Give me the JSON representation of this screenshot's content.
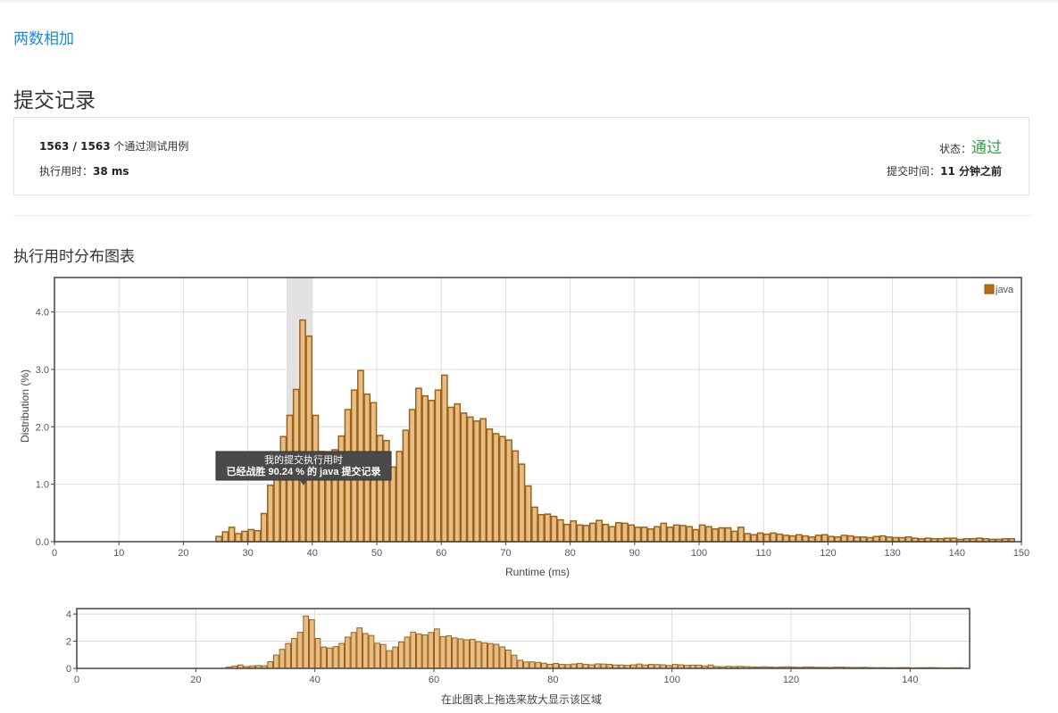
{
  "problem": {
    "title": "两数相加"
  },
  "page": {
    "title": "提交记录"
  },
  "summary": {
    "passed": "1563",
    "separator": " / ",
    "total": "1563",
    "passed_suffix": " 个通过测试用例",
    "runtime_label": "执行用时：",
    "runtime_value": "38 ms",
    "status_label": "状态：",
    "status_value": "通过",
    "submit_label": "提交时间：",
    "submit_value": "11 分钟之前"
  },
  "chart_section": {
    "title": "执行用时分布图表"
  },
  "colors": {
    "bar_fill": "#e8bc86",
    "bar_stroke": "#9b6212",
    "status_green": "#3aa14b",
    "link_blue": "#1a8cd8"
  },
  "chart_data": {
    "type": "bar",
    "xlabel": "Runtime (ms)",
    "ylabel": "Distribution (%)",
    "xlim": [
      0,
      150
    ],
    "ylim": [
      0,
      4.6
    ],
    "xticks": [
      0,
      10,
      20,
      30,
      40,
      50,
      60,
      70,
      80,
      90,
      100,
      110,
      120,
      130,
      140,
      150
    ],
    "yticks": [
      "0.0",
      "1.0",
      "2.0",
      "3.0",
      "4.0"
    ],
    "legend": {
      "label": "java",
      "position": "top-right"
    },
    "highlight_range": [
      36,
      40
    ],
    "tooltip": {
      "line1": "我的提交执行用时",
      "line2": "已经战胜 90.24 % 的 java 提交记录"
    },
    "series": [
      {
        "name": "java",
        "x": [
          26,
          27,
          28,
          29,
          30,
          31,
          32,
          33,
          34,
          35,
          36,
          37,
          38,
          39,
          40,
          41,
          42,
          43,
          44,
          45,
          46,
          47,
          48,
          49,
          50,
          51,
          52,
          53,
          54,
          55,
          56,
          57,
          58,
          59,
          60,
          61,
          62,
          63,
          64,
          65,
          66,
          67,
          68,
          69,
          70,
          71,
          72,
          73,
          74,
          75,
          76,
          77,
          78,
          79,
          80,
          81,
          82,
          83,
          84,
          85,
          86,
          87,
          88,
          89,
          90,
          91,
          92,
          93,
          94,
          95,
          96,
          97,
          98,
          99,
          100,
          101,
          102,
          103,
          104,
          105,
          106,
          107,
          108,
          109,
          110,
          111,
          112,
          113,
          114,
          115,
          116,
          117,
          118,
          119,
          120,
          121,
          122,
          123,
          124,
          125,
          126,
          127,
          128,
          129,
          130,
          131,
          132,
          133,
          134,
          135,
          136,
          137,
          138,
          139,
          140,
          141,
          142,
          143,
          144,
          145,
          146,
          147,
          148,
          149
        ],
        "values": [
          0.09,
          0.17,
          0.25,
          0.14,
          0.18,
          0.21,
          0.19,
          0.49,
          0.98,
          1.4,
          1.83,
          2.2,
          2.65,
          3.86,
          3.58,
          2.2,
          1.57,
          1.5,
          1.6,
          1.84,
          2.3,
          2.64,
          2.98,
          2.57,
          2.42,
          1.85,
          1.76,
          1.3,
          1.57,
          1.94,
          2.3,
          2.67,
          2.54,
          2.46,
          2.64,
          2.9,
          2.34,
          2.4,
          2.24,
          2.17,
          2.1,
          2.14,
          1.96,
          1.88,
          1.83,
          1.77,
          1.58,
          1.35,
          0.97,
          0.6,
          0.47,
          0.48,
          0.44,
          0.38,
          0.3,
          0.36,
          0.29,
          0.28,
          0.32,
          0.37,
          0.3,
          0.26,
          0.33,
          0.32,
          0.29,
          0.25,
          0.25,
          0.22,
          0.26,
          0.32,
          0.25,
          0.29,
          0.28,
          0.26,
          0.21,
          0.29,
          0.26,
          0.22,
          0.24,
          0.24,
          0.18,
          0.25,
          0.14,
          0.12,
          0.15,
          0.13,
          0.15,
          0.13,
          0.11,
          0.1,
          0.12,
          0.1,
          0.08,
          0.11,
          0.12,
          0.09,
          0.08,
          0.11,
          0.1,
          0.08,
          0.08,
          0.07,
          0.09,
          0.1,
          0.08,
          0.07,
          0.07,
          0.08,
          0.06,
          0.05,
          0.06,
          0.05,
          0.05,
          0.06,
          0.06,
          0.04,
          0.05,
          0.05,
          0.06,
          0.05,
          0.04,
          0.04,
          0.05,
          0.05
        ]
      }
    ],
    "navigator": {
      "xticks": [
        0,
        20,
        40,
        60,
        80,
        100,
        120,
        140
      ],
      "yticks": [
        "0",
        "2",
        "4"
      ],
      "ylim": [
        0,
        4.4
      ],
      "caption": "在此图表上拖选来放大显示该区域"
    }
  }
}
